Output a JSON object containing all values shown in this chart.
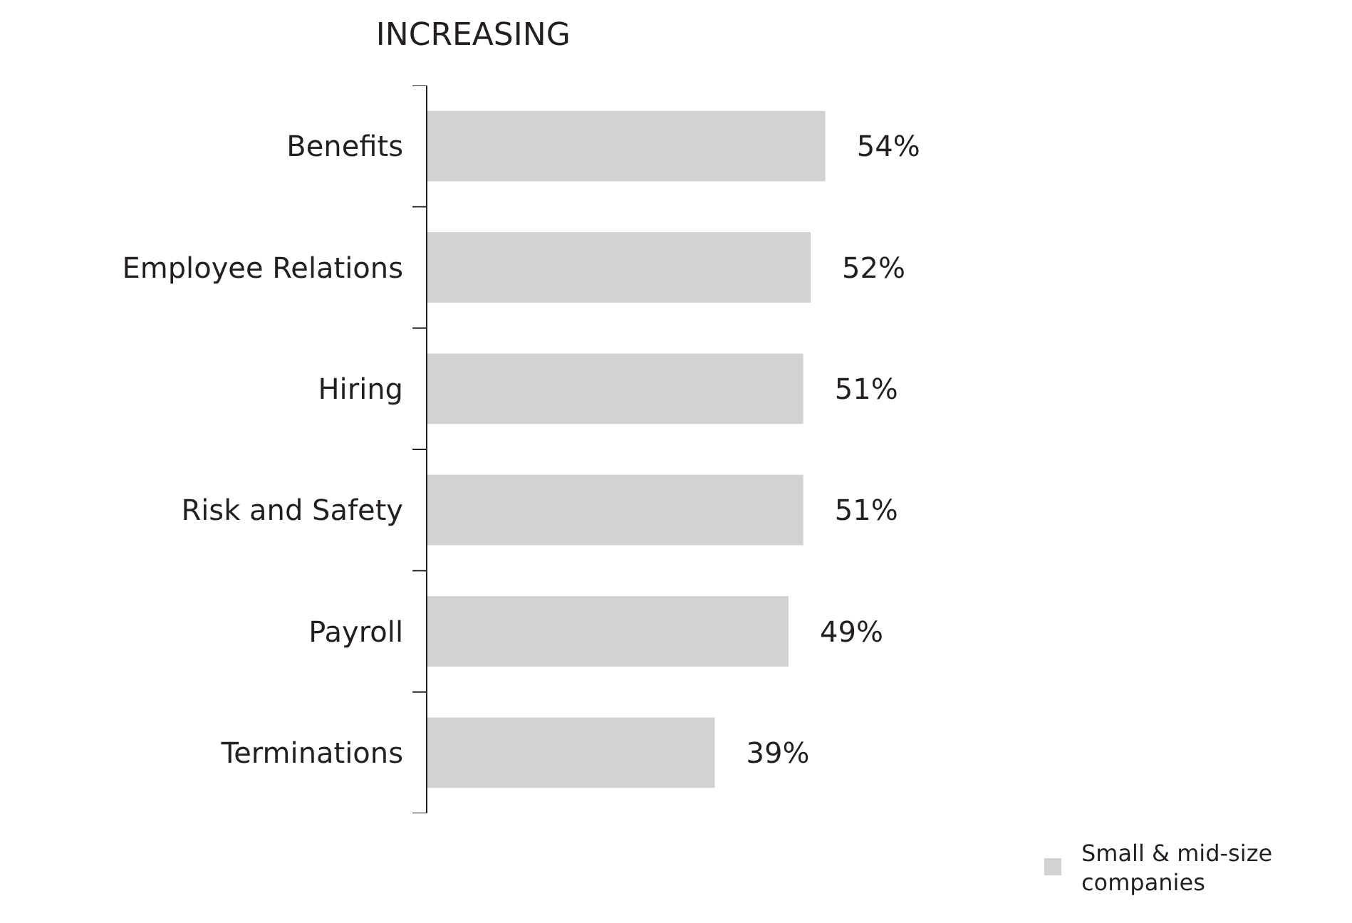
{
  "chart_data": {
    "type": "bar",
    "orientation": "horizontal",
    "title": "INCREASING",
    "categories": [
      "Benefits",
      "Employee Relations",
      "Hiring",
      "Risk and Safety",
      "Payroll",
      "Terminations"
    ],
    "series": [
      {
        "name": "Small & mid-size\ncompanies",
        "color": "#d1d2d4",
        "values": [
          54,
          52,
          51,
          51,
          49,
          39
        ],
        "value_labels": [
          "54%",
          "52%",
          "51%",
          "51%",
          "49%",
          "39%"
        ]
      }
    ],
    "legend": "bottom right"
  }
}
